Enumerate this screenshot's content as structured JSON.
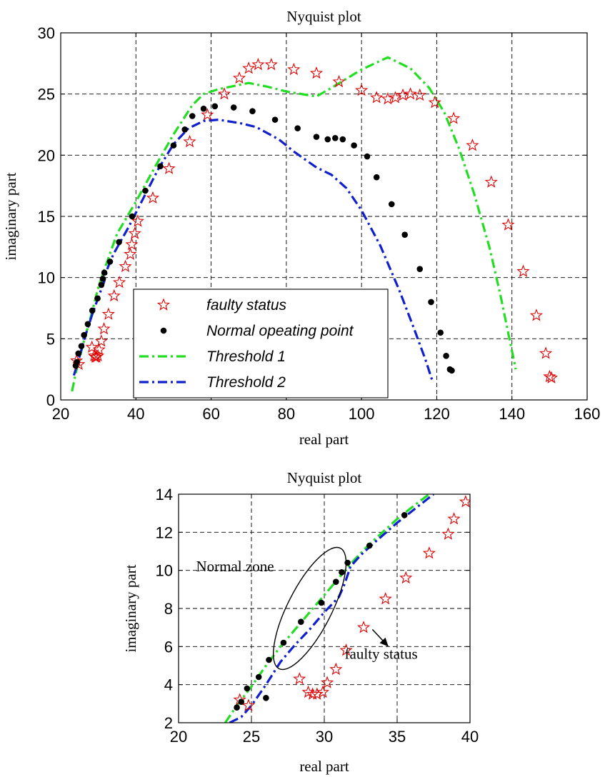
{
  "chart_data": [
    {
      "type": "scatter",
      "title": "Nyquist plot",
      "xlabel": "real part",
      "ylabel": "imaginary part",
      "xlim": [
        20,
        160
      ],
      "ylim": [
        0,
        30
      ],
      "xticks": [
        20,
        40,
        60,
        80,
        100,
        120,
        140,
        160
      ],
      "yticks": [
        0,
        5,
        10,
        15,
        20,
        25,
        30
      ],
      "grid": true,
      "legend": {
        "placement": "lower-left-center",
        "entries": [
          {
            "label": "faulty status",
            "marker": "star",
            "color": "#e00000"
          },
          {
            "label": "Normal opeating point",
            "marker": "dot",
            "color": "#000000"
          },
          {
            "label": "Threshold 1",
            "line": "dash-dot",
            "color": "#22dd22"
          },
          {
            "label": "Threshold 2",
            "line": "dash-dot",
            "color": "#1020cc"
          }
        ]
      },
      "series": [
        {
          "name": "faulty status",
          "kind": "scatter",
          "marker": "star",
          "color": "#e00000",
          "points": [
            [
              24.2,
              3.2
            ],
            [
              24.8,
              2.9
            ],
            [
              28.3,
              4.3
            ],
            [
              28.9,
              3.6
            ],
            [
              29.2,
              3.5
            ],
            [
              29.5,
              3.5
            ],
            [
              29.9,
              3.6
            ],
            [
              30.2,
              4.1
            ],
            [
              30.8,
              4.8
            ],
            [
              31.5,
              5.8
            ],
            [
              32.7,
              7.0
            ],
            [
              34.2,
              8.5
            ],
            [
              35.6,
              9.6
            ],
            [
              37.2,
              10.9
            ],
            [
              38.5,
              11.9
            ],
            [
              38.9,
              12.7
            ],
            [
              39.7,
              13.6
            ],
            [
              40.5,
              14.6
            ],
            [
              44.5,
              16.5
            ],
            [
              48.8,
              18.9
            ],
            [
              54.3,
              21.1
            ],
            [
              59.0,
              23.3
            ],
            [
              63.5,
              25.0
            ],
            [
              67.5,
              26.3
            ],
            [
              70.0,
              27.1
            ],
            [
              72.5,
              27.4
            ],
            [
              76.0,
              27.4
            ],
            [
              82.0,
              27.0
            ],
            [
              88.0,
              26.7
            ],
            [
              94.0,
              26.0
            ],
            [
              100.0,
              25.3
            ],
            [
              104.0,
              24.7
            ],
            [
              107.0,
              24.6
            ],
            [
              109.0,
              24.7
            ],
            [
              111.0,
              24.9
            ],
            [
              113.0,
              25.0
            ],
            [
              115.5,
              24.9
            ],
            [
              119.5,
              24.3
            ],
            [
              124.5,
              23.0
            ],
            [
              129.5,
              20.8
            ],
            [
              134.5,
              17.8
            ],
            [
              139.0,
              14.3
            ],
            [
              143.0,
              10.5
            ],
            [
              146.5,
              6.9
            ],
            [
              149.0,
              3.8
            ],
            [
              150.0,
              1.9
            ],
            [
              150.5,
              1.8
            ]
          ]
        },
        {
          "name": "Normal opeating point",
          "kind": "scatter",
          "marker": "dot",
          "color": "#000000",
          "points": [
            [
              24.0,
              2.8
            ],
            [
              24.3,
              3.1
            ],
            [
              24.7,
              3.8
            ],
            [
              25.5,
              4.4
            ],
            [
              26.2,
              5.3
            ],
            [
              27.2,
              6.2
            ],
            [
              28.4,
              7.3
            ],
            [
              29.8,
              8.3
            ],
            [
              30.8,
              9.4
            ],
            [
              31.2,
              9.9
            ],
            [
              31.6,
              10.4
            ],
            [
              33.1,
              11.3
            ],
            [
              35.5,
              12.9
            ],
            [
              39.0,
              15.0
            ],
            [
              42.5,
              17.1
            ],
            [
              46.5,
              19.1
            ],
            [
              50.0,
              20.8
            ],
            [
              53.0,
              22.1
            ],
            [
              55.0,
              23.2
            ],
            [
              58.0,
              23.8
            ],
            [
              61.0,
              24.0
            ],
            [
              66.0,
              23.9
            ],
            [
              71.0,
              23.6
            ],
            [
              77.0,
              22.9
            ],
            [
              83.0,
              22.2
            ],
            [
              88.0,
              21.5
            ],
            [
              91.0,
              21.3
            ],
            [
              93.0,
              21.4
            ],
            [
              95.0,
              21.3
            ],
            [
              98.0,
              20.8
            ],
            [
              101.5,
              19.9
            ],
            [
              104.0,
              18.2
            ],
            [
              108.0,
              16.0
            ],
            [
              111.5,
              13.5
            ],
            [
              115.5,
              10.7
            ],
            [
              118.5,
              8.0
            ],
            [
              121.0,
              5.5
            ],
            [
              122.5,
              3.6
            ],
            [
              123.5,
              2.5
            ],
            [
              124.0,
              2.4
            ]
          ]
        },
        {
          "name": "Threshold 1",
          "kind": "line",
          "dash": "dash-dot",
          "color": "#22dd22",
          "points": [
            [
              23.0,
              0.7
            ],
            [
              24.0,
              2.2
            ],
            [
              26.0,
              4.6
            ],
            [
              28.0,
              6.8
            ],
            [
              30.0,
              9.2
            ],
            [
              32.0,
              11.0
            ],
            [
              35.0,
              13.6
            ],
            [
              40.0,
              16.2
            ],
            [
              45.0,
              19.0
            ],
            [
              50.0,
              21.7
            ],
            [
              55.0,
              24.1
            ],
            [
              58.0,
              25.0
            ],
            [
              62.0,
              25.4
            ],
            [
              70.0,
              25.9
            ],
            [
              75.0,
              25.6
            ],
            [
              80.0,
              25.2
            ],
            [
              88.0,
              24.8
            ],
            [
              92.0,
              25.5
            ],
            [
              100.0,
              27.0
            ],
            [
              107.0,
              28.0
            ],
            [
              113.0,
              27.1
            ],
            [
              118.0,
              25.5
            ],
            [
              122.0,
              23.5
            ],
            [
              126.0,
              20.5
            ],
            [
              130.0,
              16.8
            ],
            [
              134.0,
              12.5
            ],
            [
              137.0,
              8.5
            ],
            [
              139.0,
              5.5
            ],
            [
              140.5,
              3.3
            ],
            [
              141.0,
              2.5
            ]
          ]
        },
        {
          "name": "Threshold 2",
          "kind": "line",
          "dash": "dash-dot",
          "color": "#1020cc",
          "points": [
            [
              23.5,
              2.0
            ],
            [
              24.5,
              3.0
            ],
            [
              26.5,
              5.2
            ],
            [
              28.5,
              7.1
            ],
            [
              30.5,
              8.8
            ],
            [
              31.5,
              9.6
            ],
            [
              32.5,
              10.8
            ],
            [
              34.0,
              11.9
            ],
            [
              38.0,
              14.1
            ],
            [
              42.0,
              16.5
            ],
            [
              46.0,
              18.9
            ],
            [
              50.0,
              20.9
            ],
            [
              54.0,
              22.2
            ],
            [
              58.0,
              22.8
            ],
            [
              62.0,
              22.9
            ],
            [
              68.0,
              22.6
            ],
            [
              72.0,
              22.3
            ],
            [
              78.0,
              21.3
            ],
            [
              82.0,
              20.3
            ],
            [
              88.0,
              19.0
            ],
            [
              92.0,
              18.4
            ],
            [
              96.0,
              17.3
            ],
            [
              100.0,
              15.5
            ],
            [
              105.0,
              12.6
            ],
            [
              110.0,
              9.0
            ],
            [
              114.0,
              5.8
            ],
            [
              117.0,
              3.3
            ],
            [
              119.0,
              1.4
            ]
          ]
        }
      ]
    },
    {
      "type": "scatter",
      "title": "Nyquist plot",
      "xlabel": "real part",
      "ylabel": "imaginary part",
      "xlim": [
        20,
        40
      ],
      "ylim": [
        2,
        14
      ],
      "xticks": [
        20,
        25,
        30,
        35,
        40
      ],
      "yticks": [
        2,
        4,
        6,
        8,
        10,
        12,
        14
      ],
      "grid": true,
      "annotations": [
        {
          "text": "Normal zone",
          "x": 21.2,
          "y": 9.95
        },
        {
          "text": "faulty status",
          "x": 31.4,
          "y": 5.35,
          "arrow_from": [
            33.3,
            6.9
          ],
          "arrow_to": [
            34.4,
            6.0
          ]
        }
      ],
      "ellipse": {
        "cx": 29.0,
        "cy": 8.0,
        "rx": 1.5,
        "ry": 3.55,
        "rotate_deg": 27
      },
      "series": [
        {
          "name": "faulty status",
          "kind": "scatter",
          "marker": "star",
          "color": "#e00000",
          "points": [
            [
              24.2,
              3.2
            ],
            [
              24.8,
              2.9
            ],
            [
              28.3,
              4.3
            ],
            [
              28.9,
              3.6
            ],
            [
              29.2,
              3.5
            ],
            [
              29.5,
              3.5
            ],
            [
              29.9,
              3.6
            ],
            [
              30.2,
              4.1
            ],
            [
              30.8,
              4.8
            ],
            [
              31.5,
              5.8
            ],
            [
              32.7,
              7.0
            ],
            [
              34.2,
              8.5
            ],
            [
              35.6,
              9.6
            ],
            [
              37.2,
              10.9
            ],
            [
              38.5,
              11.9
            ],
            [
              38.9,
              12.7
            ],
            [
              39.7,
              13.6
            ],
            [
              40.5,
              14.6
            ]
          ]
        },
        {
          "name": "Normal opeating point",
          "kind": "scatter",
          "marker": "dot",
          "color": "#000000",
          "points": [
            [
              24.0,
              2.8
            ],
            [
              24.3,
              3.1
            ],
            [
              24.7,
              3.8
            ],
            [
              25.5,
              4.4
            ],
            [
              26.2,
              5.3
            ],
            [
              26.0,
              3.3
            ],
            [
              27.2,
              6.2
            ],
            [
              28.4,
              7.3
            ],
            [
              29.8,
              8.3
            ],
            [
              30.8,
              9.4
            ],
            [
              31.2,
              9.9
            ],
            [
              31.6,
              10.4
            ],
            [
              33.1,
              11.3
            ],
            [
              35.5,
              12.9
            ]
          ]
        },
        {
          "name": "Threshold 1",
          "kind": "line",
          "dash": "dash-dot",
          "color": "#22dd22",
          "points": [
            [
              23.2,
              2.0
            ],
            [
              24.0,
              2.9
            ],
            [
              25.0,
              3.9
            ],
            [
              26.0,
              5.0
            ],
            [
              27.0,
              6.0
            ],
            [
              28.0,
              6.9
            ],
            [
              29.0,
              7.8
            ],
            [
              30.0,
              8.7
            ],
            [
              31.0,
              9.6
            ],
            [
              32.0,
              10.5
            ],
            [
              33.0,
              11.3
            ],
            [
              34.0,
              12.0
            ],
            [
              35.0,
              12.7
            ],
            [
              36.5,
              13.6
            ],
            [
              37.2,
              14.0
            ]
          ]
        },
        {
          "name": "Threshold 2",
          "kind": "line",
          "dash": "dash-dot",
          "color": "#1020cc",
          "points": [
            [
              23.5,
              2.0
            ],
            [
              24.3,
              2.3
            ],
            [
              25.0,
              2.9
            ],
            [
              26.0,
              4.0
            ],
            [
              27.0,
              5.2
            ],
            [
              28.0,
              6.1
            ],
            [
              29.0,
              6.9
            ],
            [
              30.0,
              7.8
            ],
            [
              31.0,
              8.6
            ],
            [
              31.4,
              9.3
            ],
            [
              31.8,
              10.2
            ],
            [
              32.5,
              10.8
            ],
            [
              33.5,
              11.5
            ],
            [
              35.0,
              12.5
            ],
            [
              36.5,
              13.4
            ],
            [
              37.5,
              14.0
            ]
          ]
        }
      ]
    }
  ]
}
